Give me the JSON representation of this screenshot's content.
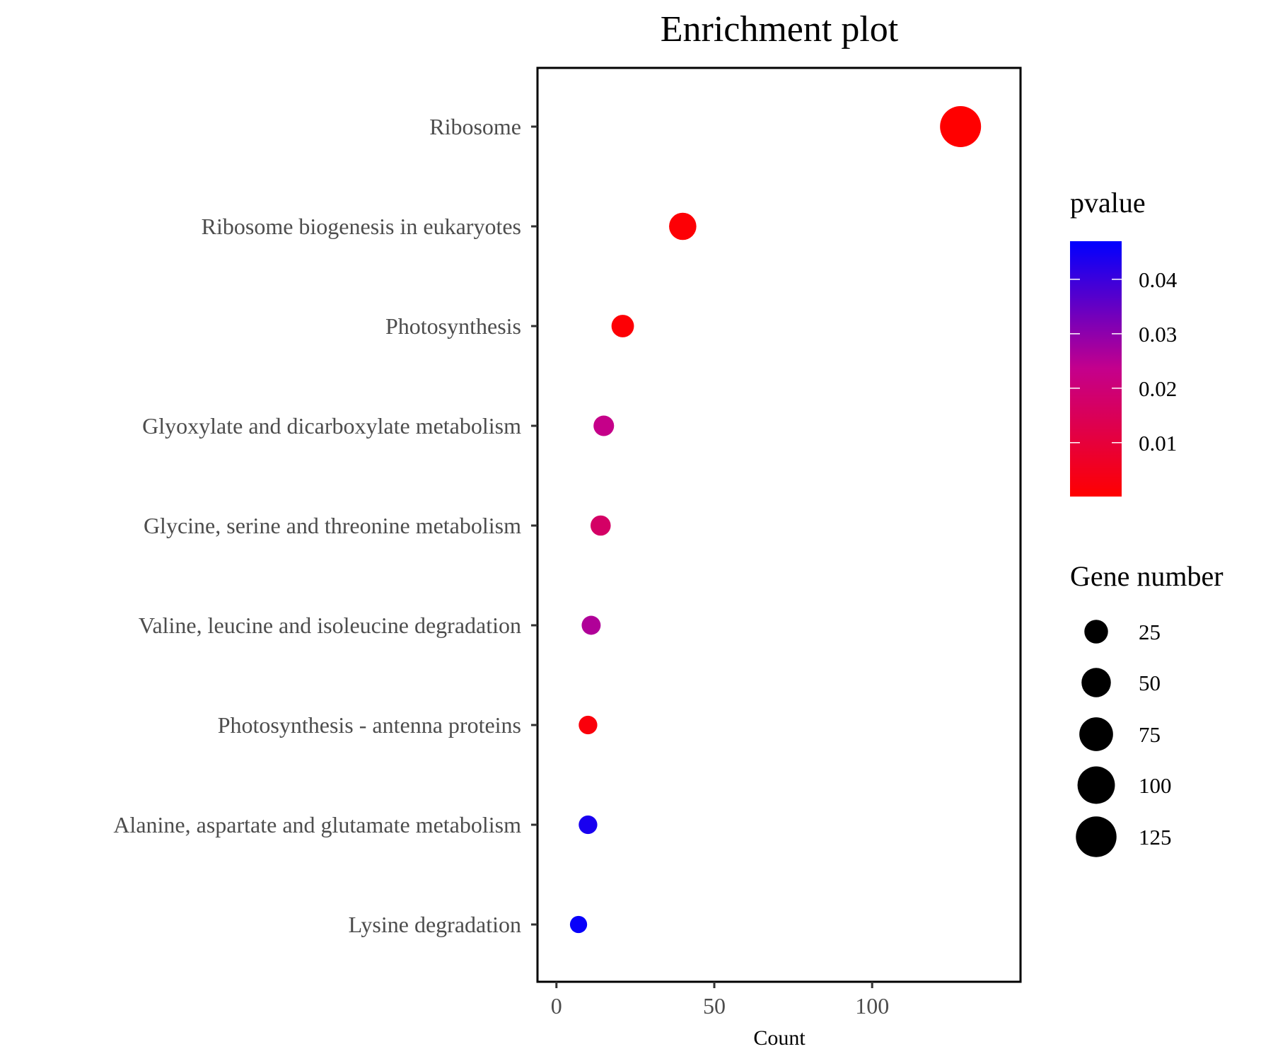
{
  "chart_data": {
    "type": "scatter",
    "title": "Enrichment plot",
    "xlabel": "Count",
    "ylabel": "",
    "xlim": [
      -6,
      147
    ],
    "xticks": [
      0,
      50,
      100
    ],
    "categories": [
      "Ribosome",
      "Ribosome biogenesis in eukaryotes",
      "Photosynthesis",
      "Glyoxylate and dicarboxylate metabolism",
      "Glycine, serine and threonine metabolism",
      "Valine, leucine and isoleucine degradation",
      "Photosynthesis - antenna proteins",
      "Alanine, aspartate and glutamate metabolism",
      "Lysine degradation"
    ],
    "points": [
      {
        "term": "Ribosome",
        "count": 128,
        "pvalue": 0.0001
      },
      {
        "term": "Ribosome biogenesis in eukaryotes",
        "count": 40,
        "pvalue": 0.001
      },
      {
        "term": "Photosynthesis",
        "count": 21,
        "pvalue": 0.001
      },
      {
        "term": "Glyoxylate and dicarboxylate metabolism",
        "count": 15,
        "pvalue": 0.023
      },
      {
        "term": "Glycine, serine and threonine metabolism",
        "count": 14,
        "pvalue": 0.017
      },
      {
        "term": "Valine, leucine and isoleucine degradation",
        "count": 11,
        "pvalue": 0.026
      },
      {
        "term": "Photosynthesis - antenna proteins",
        "count": 10,
        "pvalue": 0.002
      },
      {
        "term": "Alanine, aspartate and glutamate metabolism",
        "count": 10,
        "pvalue": 0.044
      },
      {
        "term": "Lysine degradation",
        "count": 7,
        "pvalue": 0.046
      }
    ],
    "color_legend": {
      "title": "pvalue",
      "ticks": [
        "0.04",
        "0.03",
        "0.02",
        "0.01"
      ],
      "tick_values": [
        0.04,
        0.03,
        0.02,
        0.01
      ],
      "range": [
        0.0001,
        0.047
      ],
      "low_color": "#ff0000",
      "high_color": "#0000ff"
    },
    "size_legend": {
      "title": "Gene number",
      "labels": [
        "25",
        "50",
        "75",
        "100",
        "125"
      ],
      "values": [
        25,
        50,
        75,
        100,
        125
      ]
    },
    "grid": false,
    "legend_position": "right"
  }
}
